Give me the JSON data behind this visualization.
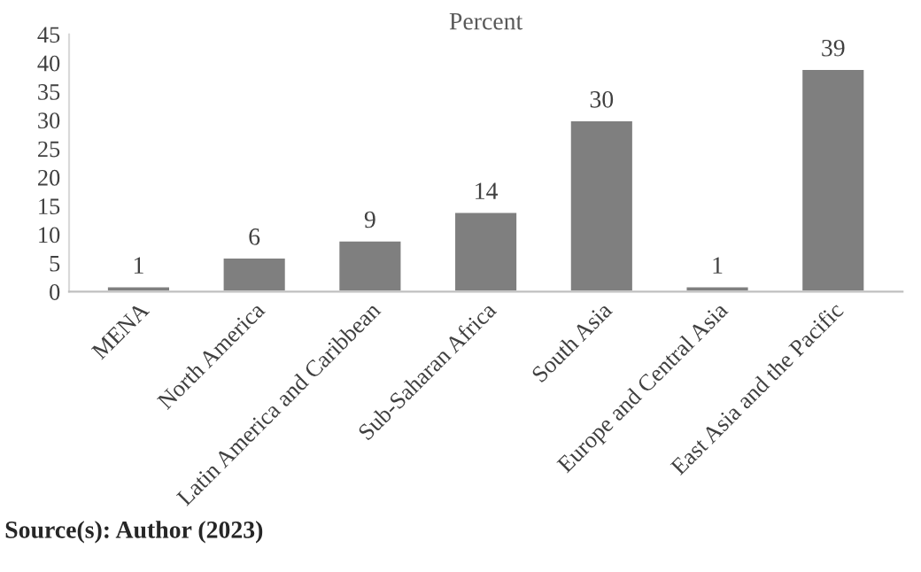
{
  "chart_data": {
    "type": "bar",
    "title": "Percent",
    "categories": [
      "MENA",
      "North America",
      "Latin America and Caribbean",
      "Sub-Saharan Africa",
      "South Asia",
      "Europe and Central Asia",
      "East Asia and the Pacific"
    ],
    "values": [
      1,
      6,
      9,
      14,
      30,
      1,
      39
    ],
    "color": "#7f7f7f",
    "ylim": [
      0,
      45
    ],
    "yticks": [
      0,
      5,
      10,
      15,
      20,
      25,
      30,
      35,
      40,
      45
    ],
    "data_labels": true,
    "grid": false,
    "legend": false,
    "annotations": [
      "Source(s): Author (2023)"
    ]
  }
}
